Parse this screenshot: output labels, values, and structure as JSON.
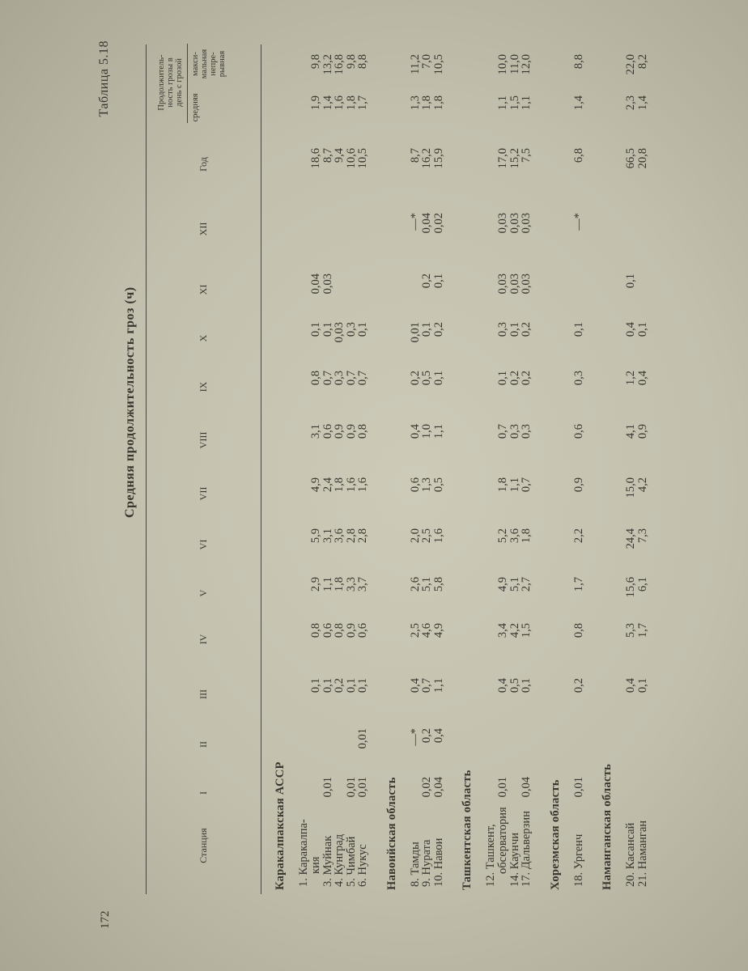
{
  "page_number": "172",
  "table_number": "Таблица 5.18",
  "title": "Средняя продолжительность гроз (ч)",
  "columns": {
    "station": "Станция",
    "months": [
      "I",
      "II",
      "III",
      "IV",
      "V",
      "VI",
      "VII",
      "VIII",
      "IX",
      "X",
      "XI",
      "XII"
    ],
    "year": "Год",
    "duration_group": [
      "Продолжитель-",
      "ность грозы в",
      "день с грозой"
    ],
    "duration_avg": "средняя",
    "duration_max": [
      "макси-",
      "мальная",
      "непре-",
      "рывная"
    ]
  },
  "sections": [
    {
      "region": "Каракалпакская АССР",
      "rows": [
        {
          "name": [
            "1. Каракалпа-",
            "кия"
          ],
          "values": [
            "",
            "",
            "0,1",
            "0,8",
            "2,9",
            "5,9",
            "4,9",
            "3,1",
            "0,8",
            "0,1",
            "0,04",
            "",
            "18,6",
            "1,9",
            "9,8"
          ]
        },
        {
          "name": [
            "3. Муйнак"
          ],
          "values": [
            "0,01",
            "",
            "0,1",
            "0,6",
            "1,1",
            "3,1",
            "2,4",
            "0,6",
            "0,7",
            "0,1",
            "0,03",
            "",
            "8,7",
            "1,4",
            "13,2"
          ]
        },
        {
          "name": [
            "4. Кунград"
          ],
          "values": [
            "",
            "",
            "0,2",
            "0,8",
            "1,8",
            "3,6",
            "1,8",
            "0,9",
            "0,3",
            "0,03",
            "",
            "",
            "9,4",
            "1,6",
            "16,8"
          ]
        },
        {
          "name": [
            "5. Чимбай"
          ],
          "values": [
            "0,01",
            "",
            "0,1",
            "0,9",
            "3,3",
            "2,8",
            "1,6",
            "0,9",
            "0,7",
            "0,3",
            "",
            "",
            "10,6",
            "1,8",
            "9,8"
          ]
        },
        {
          "name": [
            "6. Нукус"
          ],
          "values": [
            "0,01",
            "0,01",
            "0,1",
            "0,6",
            "3,7",
            "2,8",
            "1,6",
            "0,8",
            "0,7",
            "0,1",
            "",
            "",
            "10,5",
            "1,7",
            "8,8"
          ]
        }
      ]
    },
    {
      "region": "Навоийская область",
      "rows": [
        {
          "name": [
            "8. Тамды"
          ],
          "values": [
            "",
            "—*",
            "0,4",
            "2,5",
            "2,6",
            "2,0",
            "0,6",
            "0,4",
            "0,2",
            "0,01",
            "",
            "—*",
            "8,7",
            "1,3",
            "11,2"
          ]
        },
        {
          "name": [
            "9. Нурата"
          ],
          "values": [
            "0,02",
            "0,2",
            "0,7",
            "4,6",
            "5,1",
            "2,5",
            "1,3",
            "1,0",
            "0,5",
            "0,1",
            "0,2",
            "0,04",
            "16,2",
            "1,8",
            "7,0"
          ]
        },
        {
          "name": [
            "10. Навои"
          ],
          "values": [
            "0,04",
            "0,4",
            "1,1",
            "4,9",
            "5,8",
            "1,6",
            "0,5",
            "1,1",
            "0,1",
            "0,2",
            "0,1",
            "0,02",
            "15,9",
            "1,8",
            "10,5"
          ]
        }
      ]
    },
    {
      "region": "Ташкентская область",
      "rows": [
        {
          "name": [
            "12. Ташкент,",
            "обсерватория"
          ],
          "values": [
            "0,01",
            "",
            "0,4",
            "3,4",
            "4,9",
            "5,2",
            "1,8",
            "0,7",
            "0,1",
            "0,3",
            "0,03",
            "0,03",
            "17,0",
            "1,1",
            "10,0"
          ]
        },
        {
          "name": [
            "14. Каунчи"
          ],
          "values": [
            "",
            "",
            "0,5",
            "4,2",
            "5,1",
            "3,6",
            "1,1",
            "0,3",
            "0,2",
            "0,1",
            "0,03",
            "0,03",
            "15,2",
            "1,5",
            "11,0"
          ]
        },
        {
          "name": [
            "17. Дальверзин"
          ],
          "values": [
            "0,04",
            "",
            "0,1",
            "1,5",
            "2,7",
            "1,8",
            "0,7",
            "0,3",
            "0,2",
            "0,2",
            "0,03",
            "0,03",
            "7,5",
            "1,1",
            "12,0"
          ]
        }
      ]
    },
    {
      "region": "Хорезмская область",
      "rows": [
        {
          "name": [
            "18. Ургенч"
          ],
          "values": [
            "0,01",
            "",
            "0,2",
            "0,8",
            "1,7",
            "2,2",
            "0,9",
            "0,6",
            "0,3",
            "0,1",
            "",
            "—*",
            "6,8",
            "1,4",
            "8,8"
          ]
        }
      ]
    },
    {
      "region": "Наманганская область",
      "rows": [
        {
          "name": [
            "20. Касансай"
          ],
          "values": [
            "",
            "",
            "0,4",
            "5,3",
            "15,6",
            "24,4",
            "15,0",
            "4,1",
            "1,2",
            "0,4",
            "0,1",
            "",
            "66,5",
            "2,3",
            "22,0"
          ]
        },
        {
          "name": [
            "21. Наманган"
          ],
          "values": [
            "",
            "",
            "0,1",
            "1,7",
            "6,1",
            "7,3",
            "4,2",
            "0,9",
            "0,4",
            "0,1",
            "",
            "",
            "20,8",
            "1,4",
            "8,2"
          ]
        }
      ]
    }
  ]
}
